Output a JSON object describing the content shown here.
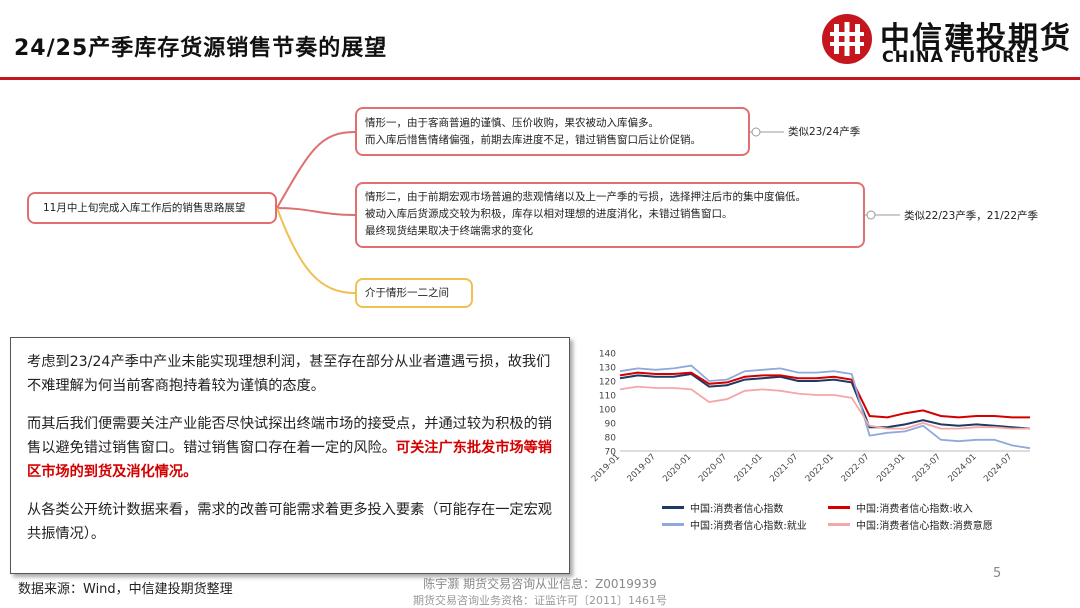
{
  "header": {
    "title": "24/25产季库存货源销售节奏的展望",
    "logo_cn": "中信建投期货",
    "logo_en": "CHINA FUTURES"
  },
  "mindmap": {
    "center": "11月中上旬完成入库工作后的销售思路展望",
    "branch1": {
      "line1": "情形一，由于客商普遍的谨慎、压价收购，果农被动入库偏多。",
      "line2": "而入库后惜售情绪偏强，前期去库进度不足，错过销售窗口后让价促销。",
      "side": "类似23/24产季"
    },
    "branch2": {
      "line1": "情形二，由于前期宏观市场普遍的悲观情绪以及上一产季的亏损，选择押注后市的集中度偏低。",
      "line2": "被动入库后货源成交较为积极，库存以相对理想的进度消化，未错过销售窗口。",
      "line3": "最终现货结果取决于终端需求的变化",
      "side": "类似22/23产季，21/22产季"
    },
    "branch3": {
      "text": "介于情形一二之间"
    }
  },
  "textbox": {
    "p1": "考虑到23/24产季中产业未能实现理想利润，甚至存在部分从业者遭遇亏损，故我们不难理解为何当前客商抱持着较为谨慎的态度。",
    "p2_a": "而其后我们便需要关注产业能否尽快试探出终端市场的接受点，并通过较为积极的销售以避免错过销售窗口。错过销售窗口存在着一定的风险。",
    "p2_b": "可关注广东批发市场等销区市场的到货及消化情况。",
    "p3": "从各类公开统计数据来看，需求的改善可能需求着更多投入要素（可能存在一定宏观共振情况）。"
  },
  "footer": {
    "source": "数据来源：Wind，中信建投期货整理",
    "line1": "陈宇灏 期货交易咨询从业信息：Z0019939",
    "line2": "期货交易咨询业务资格：证监许可〔2011〕1461号",
    "page": "5"
  },
  "colors": {
    "accent": "#c4161c",
    "s1": "#1f3864",
    "s2": "#d40000",
    "s3": "#8ea9db",
    "s4": "#f4a7a7"
  },
  "chart_data": {
    "type": "line",
    "categories": [
      "2019-01",
      "2019-04",
      "2019-07",
      "2019-10",
      "2020-01",
      "2020-04",
      "2020-07",
      "2020-10",
      "2021-01",
      "2021-04",
      "2021-07",
      "2021-10",
      "2022-01",
      "2022-04",
      "2022-07",
      "2022-10",
      "2023-01",
      "2023-04",
      "2023-07",
      "2023-10",
      "2024-01",
      "2024-04",
      "2024-07",
      "2024-10"
    ],
    "tick_labels": [
      "2019-01",
      "2019-07",
      "2020-01",
      "2020-07",
      "2021-01",
      "2021-07",
      "2022-01",
      "2022-07",
      "2023-01",
      "2023-07",
      "2024-01",
      "2024-07"
    ],
    "ylim": [
      70,
      140
    ],
    "yticks": [
      "70",
      "80",
      "90",
      "100",
      "110",
      "120",
      "130",
      "140"
    ],
    "series": [
      {
        "name": "中国:消费者信心指数",
        "color": "#1f3864",
        "values": [
          122,
          124,
          123,
          123,
          125,
          116,
          117,
          121,
          122,
          123,
          120,
          120,
          121,
          119,
          87,
          87,
          89,
          92,
          89,
          88,
          89,
          88,
          87,
          86
        ]
      },
      {
        "name": "中国:消费者信心指数:收入",
        "color": "#d40000",
        "values": [
          124,
          126,
          125,
          125,
          126,
          118,
          119,
          123,
          124,
          124,
          122,
          122,
          123,
          121,
          95,
          94,
          97,
          99,
          95,
          94,
          95,
          95,
          94,
          94
        ]
      },
      {
        "name": "中国:消费者信心指数:就业",
        "color": "#8ea9db",
        "values": [
          127,
          129,
          128,
          129,
          131,
          120,
          121,
          127,
          128,
          129,
          126,
          126,
          127,
          125,
          81,
          83,
          84,
          88,
          78,
          77,
          78,
          78,
          74,
          72
        ]
      },
      {
        "name": "中国:消费者信心指数:消费意愿",
        "color": "#f4a7a7",
        "values": [
          114,
          116,
          115,
          115,
          114,
          105,
          107,
          113,
          114,
          113,
          111,
          110,
          110,
          108,
          88,
          86,
          86,
          90,
          86,
          86,
          87,
          87,
          86,
          86
        ]
      }
    ]
  }
}
